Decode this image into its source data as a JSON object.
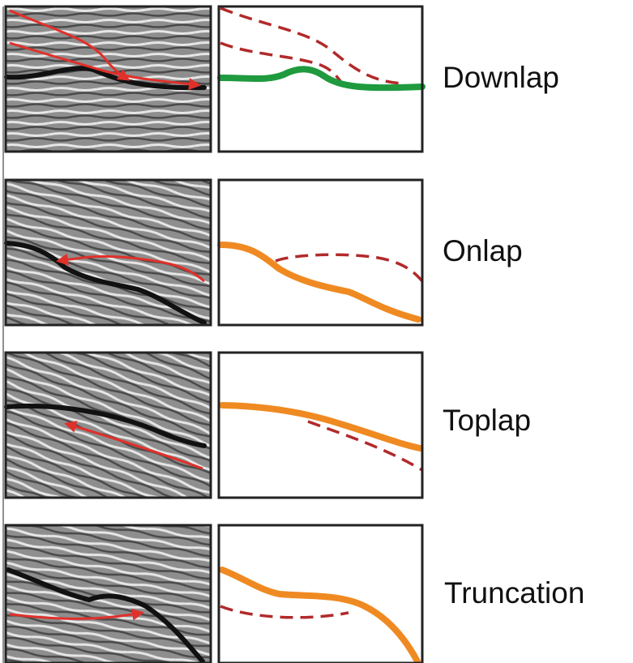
{
  "rows": [
    {
      "label": "Downlap"
    },
    {
      "label": "Onlap"
    },
    {
      "label": "Toplap"
    },
    {
      "label": "Truncation"
    }
  ]
}
